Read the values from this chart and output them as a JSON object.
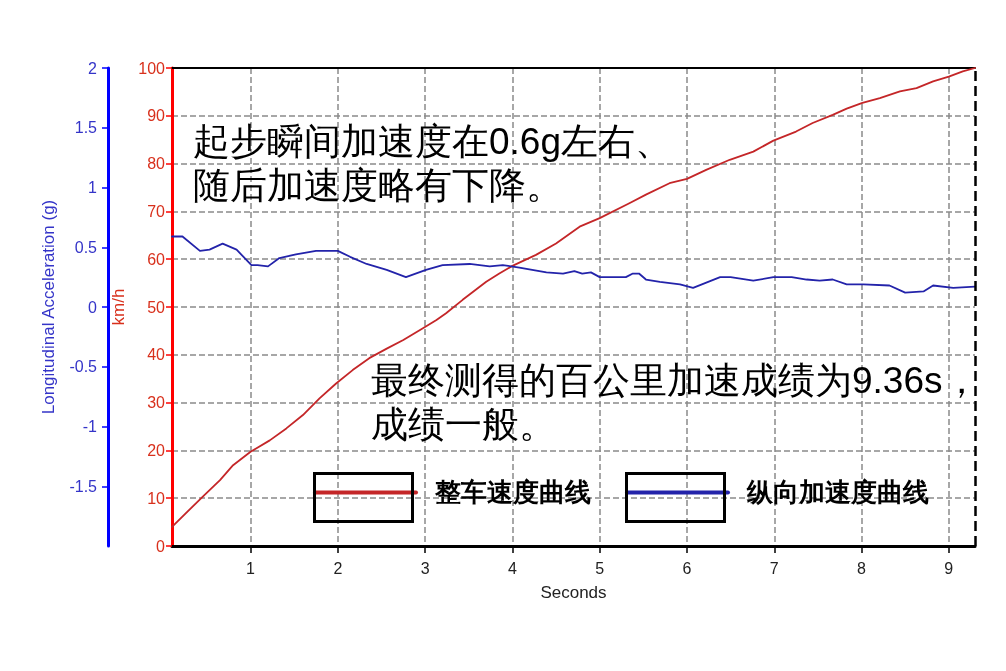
{
  "chart_data": {
    "type": "line",
    "xlabel": "Seconds",
    "ylabel": "km/h",
    "y2label": "Longitudinal Acceleration (g)",
    "xlim": [
      0.1,
      9.3
    ],
    "xticks": [
      1,
      2,
      3,
      4,
      5,
      6,
      7,
      8,
      9
    ],
    "ylim": [
      0,
      100
    ],
    "yticks": [
      0,
      10,
      20,
      30,
      40,
      50,
      60,
      70,
      80,
      90,
      100
    ],
    "y2lim": [
      -2,
      2
    ],
    "y2ticks": [
      -1.5,
      -1,
      -0.5,
      0,
      0.5,
      1,
      1.5,
      2
    ],
    "grid": true,
    "legend": "bottom",
    "marker": "none",
    "series": [
      {
        "name": "整车速度曲线",
        "color": "#c42628",
        "x": [
          0.1,
          0.45,
          0.65,
          0.8,
          1.0,
          1.22,
          1.41,
          1.6,
          1.79,
          1.98,
          2.17,
          2.36,
          2.56,
          2.75,
          2.97,
          3.13,
          3.24,
          3.43,
          3.7,
          3.85,
          4.0,
          4.27,
          4.5,
          4.77,
          5.0,
          5.34,
          5.53,
          5.8,
          6.0,
          6.22,
          6.49,
          6.76,
          6.99,
          7.25,
          7.44,
          7.67,
          7.83,
          8.01,
          8.21,
          8.44,
          8.63,
          8.82,
          9.0,
          9.16,
          9.3
        ],
        "values": [
          4.0,
          10.3,
          13.8,
          16.9,
          19.7,
          22.1,
          24.6,
          27.4,
          30.9,
          34.0,
          36.8,
          39.3,
          41.3,
          43.1,
          45.5,
          47.3,
          48.7,
          51.5,
          55.3,
          57.0,
          58.6,
          60.9,
          63.3,
          66.8,
          68.6,
          71.7,
          73.5,
          75.9,
          76.8,
          78.7,
          80.8,
          82.5,
          84.8,
          86.7,
          88.5,
          90.2,
          91.5,
          92.7,
          93.7,
          95.1,
          95.8,
          97.2,
          98.2,
          99.3,
          100
        ]
      },
      {
        "name": "纵向加速度曲线",
        "color": "#2323aa",
        "axis": "y2",
        "x": [
          0.1,
          0.22,
          0.42,
          0.53,
          0.68,
          0.84,
          1.01,
          1.08,
          1.2,
          1.33,
          1.52,
          1.75,
          2.0,
          2.14,
          2.33,
          2.56,
          2.78,
          3.01,
          3.2,
          3.51,
          3.74,
          3.89,
          4.08,
          4.39,
          4.58,
          4.71,
          4.8,
          4.9,
          5.0,
          5.3,
          5.38,
          5.45,
          5.53,
          5.69,
          5.92,
          6.07,
          6.38,
          6.5,
          6.76,
          6.99,
          7.2,
          7.37,
          7.52,
          7.67,
          7.83,
          8.02,
          8.32,
          8.5,
          8.71,
          8.82,
          9.05,
          9.3
        ],
        "values": [
          0.59,
          0.59,
          0.47,
          0.48,
          0.53,
          0.48,
          0.35,
          0.35,
          0.34,
          0.41,
          0.44,
          0.47,
          0.47,
          0.42,
          0.36,
          0.31,
          0.25,
          0.31,
          0.35,
          0.36,
          0.34,
          0.35,
          0.33,
          0.29,
          0.28,
          0.3,
          0.28,
          0.29,
          0.25,
          0.25,
          0.28,
          0.28,
          0.23,
          0.21,
          0.19,
          0.16,
          0.25,
          0.25,
          0.22,
          0.25,
          0.25,
          0.23,
          0.22,
          0.23,
          0.19,
          0.19,
          0.18,
          0.12,
          0.13,
          0.18,
          0.16,
          0.17
        ]
      }
    ],
    "ref_lines": [
      {
        "axis": "x",
        "value": 9.3,
        "line_style": "dashed",
        "color": "#000000"
      }
    ],
    "annotations": [
      "起步瞬间加速度在0.6g左右、随后加速度略有下降。",
      "最终测得的百公里加速成绩为9.36s，成绩一般。"
    ]
  }
}
